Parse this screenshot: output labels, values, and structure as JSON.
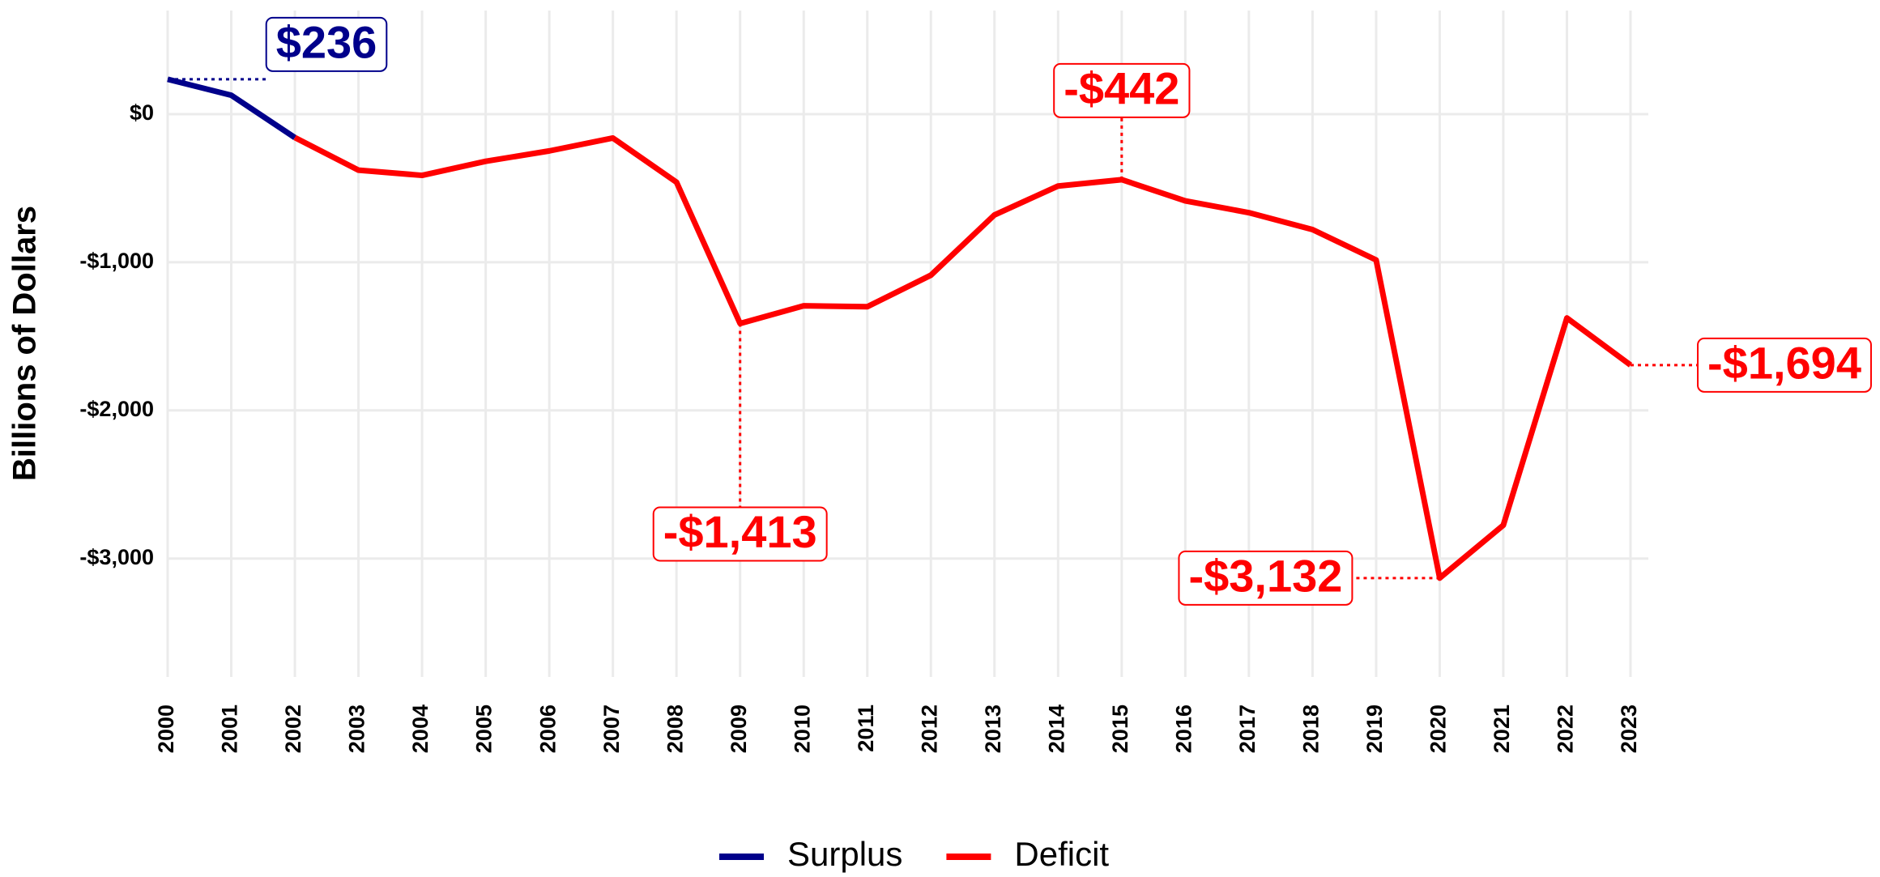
{
  "chart_data": {
    "type": "line",
    "y_label": "Billions of Dollars",
    "x": [
      2000,
      2001,
      2002,
      2003,
      2004,
      2005,
      2006,
      2007,
      2008,
      2009,
      2010,
      2011,
      2012,
      2013,
      2014,
      2015,
      2016,
      2017,
      2018,
      2019,
      2020,
      2021,
      2022,
      2023
    ],
    "series": [
      {
        "name": "Surplus",
        "color": "#00008b",
        "values": [
          236,
          128,
          -158,
          null,
          null,
          null,
          null,
          null,
          null,
          null,
          null,
          null,
          null,
          null,
          null,
          null,
          null,
          null,
          null,
          null,
          null,
          null,
          null,
          null
        ]
      },
      {
        "name": "Deficit",
        "color": "#ff0000",
        "values": [
          null,
          null,
          -158,
          -378,
          -413,
          -318,
          -248,
          -161,
          -459,
          -1413,
          -1294,
          -1300,
          -1087,
          -680,
          -485,
          -442,
          -585,
          -665,
          -779,
          -984,
          -3132,
          -2775,
          -1376,
          -1694
        ]
      }
    ],
    "annotations": [
      {
        "text": "$236",
        "x": 2000,
        "y": 236,
        "color": "#00008b"
      },
      {
        "text": "-$442",
        "x": 2015,
        "y": -442,
        "color": "#ff0000"
      },
      {
        "text": "-$1,413",
        "x": 2009,
        "y": -1413,
        "color": "#ff0000"
      },
      {
        "text": "-$3,132",
        "x": 2020,
        "y": -3132,
        "color": "#ff0000"
      },
      {
        "text": "-$1,694",
        "x": 2023,
        "y": -1694,
        "color": "#ff0000"
      }
    ],
    "xlim": [
      2000,
      2023
    ],
    "ylim": [
      -3800,
      700
    ],
    "yticks": [
      {
        "value": 0,
        "label": "$0"
      },
      {
        "value": -1000,
        "label": "-$1,000"
      },
      {
        "value": -2000,
        "label": "-$2,000"
      },
      {
        "value": -3000,
        "label": "-$3,000"
      }
    ],
    "grid": true,
    "legend": "bottom"
  }
}
